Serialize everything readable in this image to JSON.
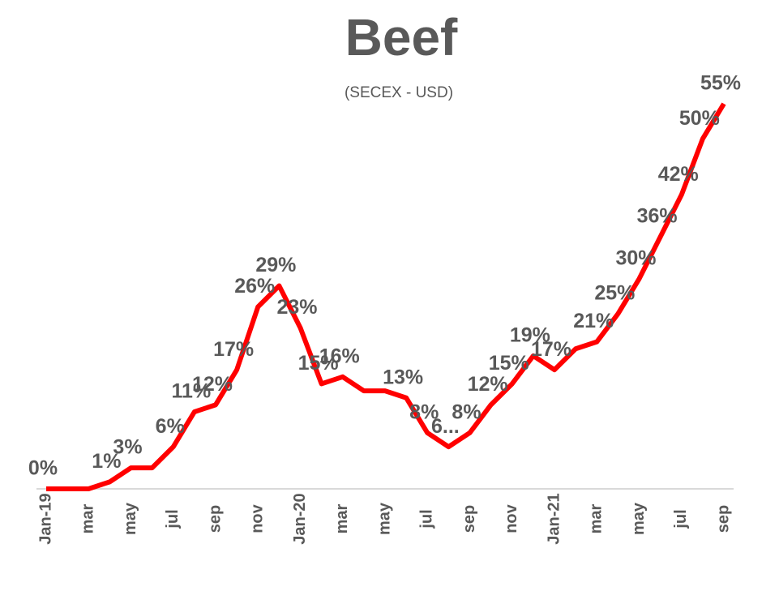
{
  "chart_data": {
    "type": "line",
    "title": "Beef",
    "subtitle": "(SECEX - USD)",
    "categories": [
      "Jan-19",
      null,
      "mar",
      null,
      "may",
      null,
      "jul",
      null,
      "sep",
      null,
      "nov",
      null,
      "Jan-20",
      null,
      "mar",
      null,
      "may",
      null,
      "jul",
      null,
      "sep",
      null,
      "nov",
      null,
      "Jan-21",
      null,
      "mar",
      null,
      "may",
      null,
      "jul",
      null,
      "sep"
    ],
    "series": [
      {
        "name": "Beef",
        "color": "#ff0000",
        "values": [
          0,
          0,
          0,
          1,
          3,
          3,
          6,
          11,
          12,
          17,
          26,
          29,
          23,
          15,
          16,
          14,
          14,
          13,
          8,
          6,
          8,
          12,
          15,
          19,
          17,
          20,
          21,
          25,
          30,
          36,
          42,
          50,
          55
        ],
        "value_labels": [
          "0%",
          null,
          null,
          "1%",
          "3%",
          null,
          "6%",
          "11%",
          "12%",
          "17%",
          "26%",
          "29%",
          "23%",
          "15%",
          "16%",
          null,
          null,
          "13%",
          "8%",
          "6...",
          "8%",
          "12%",
          "15%",
          "19%",
          "17%",
          null,
          "21%",
          "25%",
          "30%",
          "36%",
          "42%",
          "50%",
          "55%"
        ]
      }
    ]
  }
}
